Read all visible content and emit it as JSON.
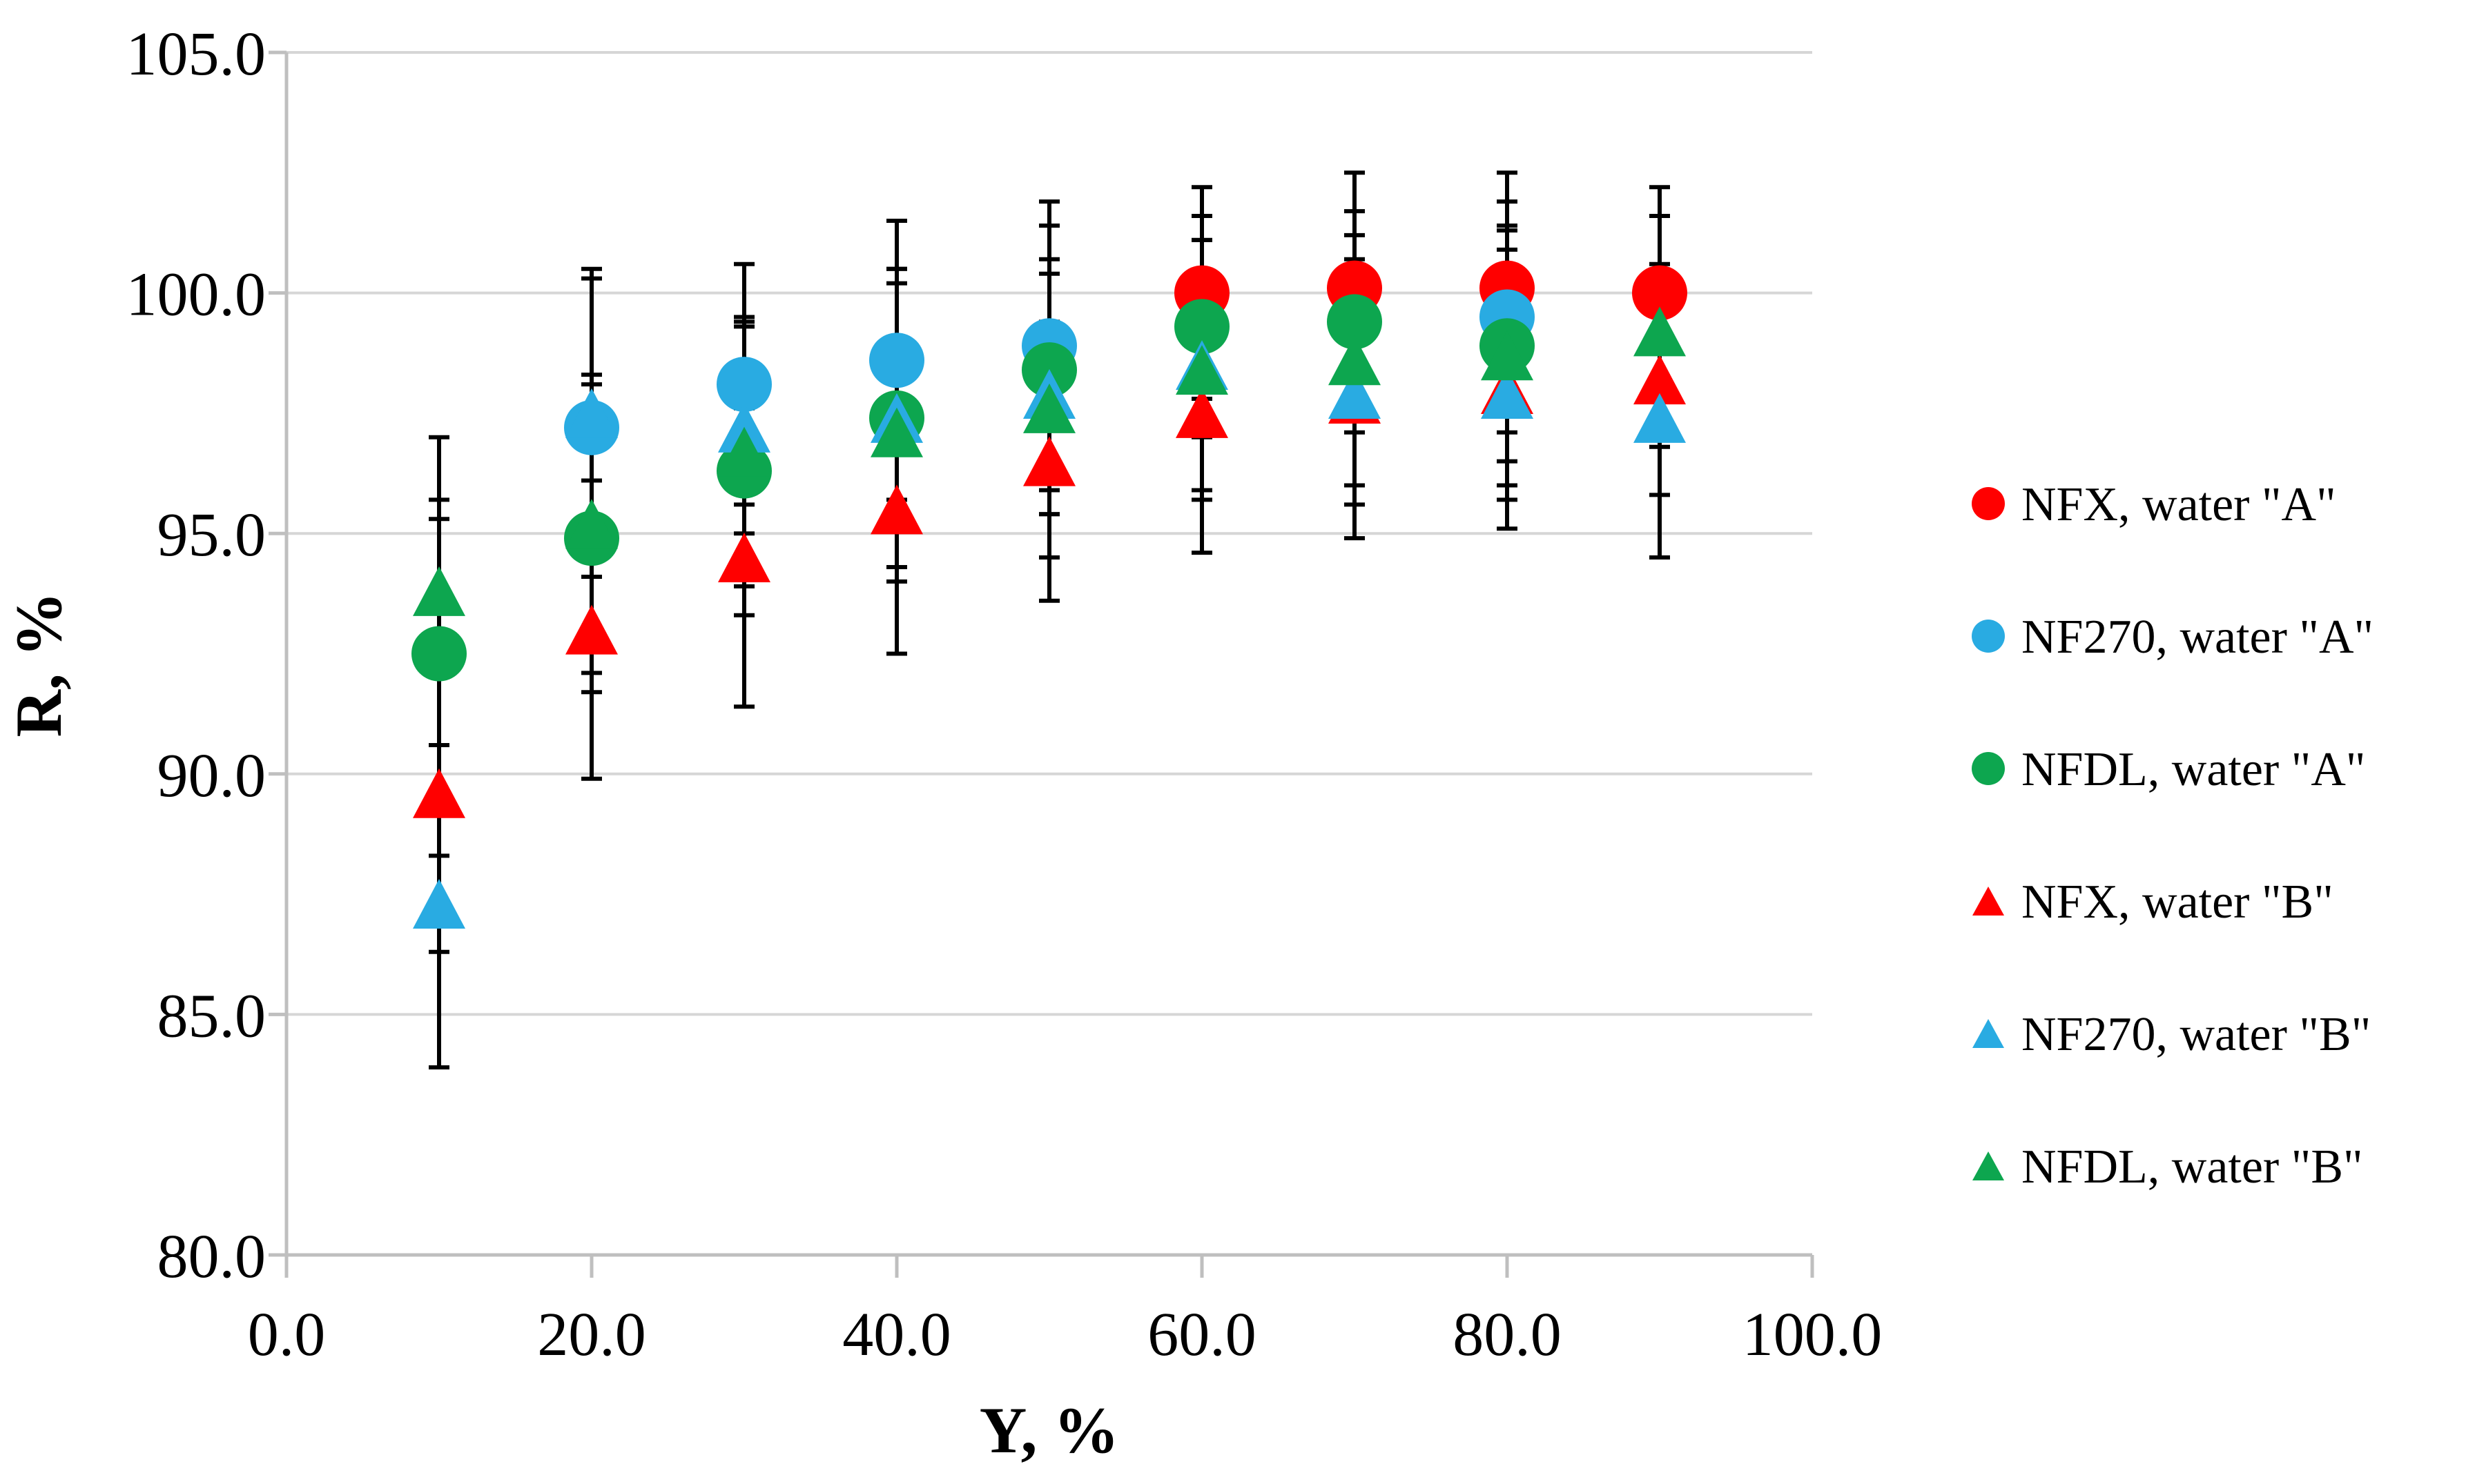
{
  "page": {
    "background": "#FFFFFF"
  },
  "chart_data": {
    "type": "scatter",
    "title": "",
    "xlabel": "Y, %",
    "ylabel": "R, %",
    "xlim": [
      0,
      100
    ],
    "ylim": [
      80,
      105
    ],
    "grid": "horizontal",
    "legend_position": "right-middle",
    "error_bars": true,
    "x_ticks": [
      {
        "value": 0,
        "label": "0.0"
      },
      {
        "value": 20,
        "label": "20.0"
      },
      {
        "value": 40,
        "label": "40.0"
      },
      {
        "value": 60,
        "label": "60.0"
      },
      {
        "value": 80,
        "label": "80.0"
      },
      {
        "value": 100,
        "label": "100.0"
      }
    ],
    "y_ticks": [
      {
        "value": 105,
        "label": "105.0"
      },
      {
        "value": 100,
        "label": "100.0"
      },
      {
        "value": 95,
        "label": "95.0"
      },
      {
        "value": 90,
        "label": "90.0"
      },
      {
        "value": 85,
        "label": "85.0"
      },
      {
        "value": 80,
        "label": "80.0"
      }
    ],
    "series": [
      {
        "name": "NFX, water \"A\"",
        "marker": "circle",
        "color": "#FF0000",
        "points": [
          {
            "x": 60,
            "y": 100.0,
            "err": 2.2
          },
          {
            "x": 70,
            "y": 100.1,
            "err": 2.4
          },
          {
            "x": 80,
            "y": 100.1,
            "err": 2.4
          },
          {
            "x": 90,
            "y": 100.0,
            "err": 2.2
          }
        ]
      },
      {
        "name": "NF270, water \"A\"",
        "marker": "circle",
        "color": "#29ABE2",
        "points": [
          {
            "x": 20,
            "y": 97.2,
            "err": 3.1
          },
          {
            "x": 30,
            "y": 98.1,
            "err": 2.5
          },
          {
            "x": 40,
            "y": 98.6,
            "err": 2.9
          },
          {
            "x": 50,
            "y": 98.9,
            "err": 3.0
          },
          {
            "x": 80,
            "y": 99.5,
            "err": 2.4
          }
        ]
      },
      {
        "name": "NFDL, water \"A\"",
        "marker": "circle",
        "color": "#0DA64F",
        "points": [
          {
            "x": 10,
            "y": 92.5,
            "err": 3.2
          },
          {
            "x": 20,
            "y": 94.9,
            "err": 3.2
          },
          {
            "x": 30,
            "y": 96.3,
            "err": 3.0
          },
          {
            "x": 40,
            "y": 97.4,
            "err": 3.1
          },
          {
            "x": 50,
            "y": 98.4,
            "err": 3.0
          },
          {
            "x": 60,
            "y": 99.3,
            "err": 2.3
          },
          {
            "x": 70,
            "y": 99.4,
            "err": 2.3
          },
          {
            "x": 80,
            "y": 98.9,
            "err": 2.4
          }
        ]
      },
      {
        "name": "NFX, water \"B\"",
        "marker": "triangle",
        "color": "#FF0000",
        "points": [
          {
            "x": 10,
            "y": 89.6,
            "err": 5.7
          },
          {
            "x": 20,
            "y": 93.0,
            "err": 3.1
          },
          {
            "x": 30,
            "y": 94.5,
            "err": 3.1
          },
          {
            "x": 40,
            "y": 95.5,
            "err": 3.0
          },
          {
            "x": 50,
            "y": 96.5,
            "err": 2.9
          },
          {
            "x": 60,
            "y": 97.5,
            "err": 2.9
          },
          {
            "x": 70,
            "y": 97.8,
            "err": 2.9
          },
          {
            "x": 80,
            "y": 98.0,
            "err": 2.9
          },
          {
            "x": 90,
            "y": 98.2,
            "err": 2.4
          }
        ]
      },
      {
        "name": "NF270, water \"B\"",
        "marker": "triangle",
        "color": "#29ABE2",
        "points": [
          {
            "x": 10,
            "y": 87.3,
            "err": 1.0
          },
          {
            "x": 20,
            "y": 97.5,
            "err": 3.0
          },
          {
            "x": 30,
            "y": 97.2,
            "err": 2.2
          },
          {
            "x": 40,
            "y": 97.4,
            "err": 3.1
          },
          {
            "x": 50,
            "y": 97.9,
            "err": 2.5
          },
          {
            "x": 60,
            "y": 98.5,
            "err": 2.6
          },
          {
            "x": 70,
            "y": 97.9,
            "err": 2.3
          },
          {
            "x": 80,
            "y": 97.9,
            "err": 2.2
          },
          {
            "x": 90,
            "y": 97.4,
            "err": 2.9
          }
        ]
      },
      {
        "name": "NFDL, water \"B\"",
        "marker": "triangle",
        "color": "#0DA64F",
        "points": [
          {
            "x": 10,
            "y": 93.8,
            "err": 3.2
          },
          {
            "x": 20,
            "y": 95.2,
            "err": 3.1
          },
          {
            "x": 30,
            "y": 96.7,
            "err": 2.8
          },
          {
            "x": 40,
            "y": 97.1,
            "err": 3.1
          },
          {
            "x": 50,
            "y": 97.6,
            "err": 3.1
          },
          {
            "x": 60,
            "y": 98.4,
            "err": 2.7
          },
          {
            "x": 70,
            "y": 98.6,
            "err": 2.6
          },
          {
            "x": 80,
            "y": 98.7,
            "err": 2.7
          },
          {
            "x": 90,
            "y": 99.2,
            "err": 2.4
          }
        ]
      }
    ],
    "colors": {
      "red": "#FF0000",
      "blue": "#29ABE2",
      "green": "#0DA64F",
      "gridline": "#D6D6D6",
      "axis": "#BFBFBF",
      "error_bar": "#000000",
      "text": "#000000"
    }
  }
}
